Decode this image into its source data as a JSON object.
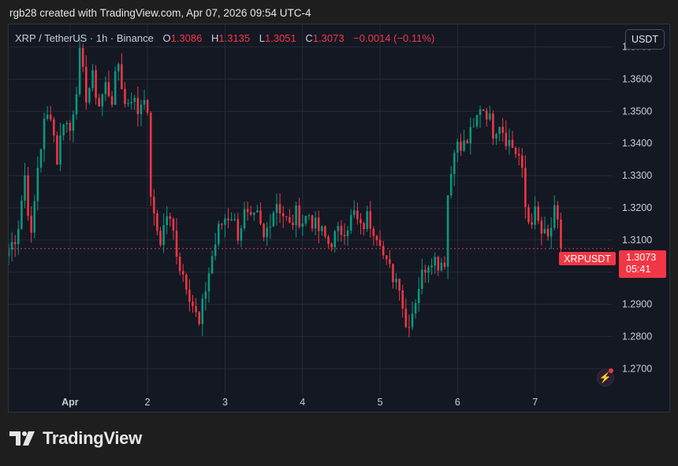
{
  "header": {
    "attribution": "rgb28 created with TradingView.com, Apr 07, 2026 09:54 UTC-4"
  },
  "legend": {
    "symbol": "XRP / TetherUS · 1h · Binance",
    "o_label": "O",
    "o_value": "1.3086",
    "h_label": "H",
    "h_value": "1.3135",
    "l_label": "L",
    "l_value": "1.3051",
    "c_label": "C",
    "c_value": "1.3073",
    "change": "−0.0014 (−0.11%)"
  },
  "currency_button": "USDT",
  "price_tag": {
    "symbol": "XRPUSDT",
    "price": "1.3073",
    "countdown": "05:41"
  },
  "brand": {
    "name": "TradingView"
  },
  "colors": {
    "up": "#089981",
    "down": "#f23645",
    "background": "#141823",
    "grid": "#262b38"
  },
  "chart_data": {
    "type": "candlestick",
    "interval": "1h",
    "y_ticks": [
      "1.3700",
      "1.3600",
      "1.3500",
      "1.3400",
      "1.3300",
      "1.3200",
      "1.3100",
      "1.3000",
      "1.2900",
      "1.2800",
      "1.2700"
    ],
    "ylim": [
      1.262,
      1.377
    ],
    "x_ticks": [
      "Apr",
      "2",
      "3",
      "4",
      "5",
      "6",
      "7"
    ],
    "x_tick_hours": [
      0,
      24,
      48,
      72,
      96,
      120,
      144
    ],
    "xlim": [
      -19,
      168
    ],
    "last_price": 1.3073,
    "grid": true,
    "anchors": [
      [
        -19,
        1.307
      ],
      [
        -17,
        1.311
      ],
      [
        -16,
        1.315
      ],
      [
        -14,
        1.33
      ],
      [
        -12,
        1.31
      ],
      [
        -10,
        1.333
      ],
      [
        -8,
        1.346
      ],
      [
        -6,
        1.35
      ],
      [
        -4,
        1.335
      ],
      [
        -2,
        1.348
      ],
      [
        0,
        1.344
      ],
      [
        2,
        1.358
      ],
      [
        3,
        1.367
      ],
      [
        5,
        1.355
      ],
      [
        7,
        1.36
      ],
      [
        9,
        1.352
      ],
      [
        11,
        1.358
      ],
      [
        13,
        1.354
      ],
      [
        15,
        1.365
      ],
      [
        17,
        1.352
      ],
      [
        19,
        1.355
      ],
      [
        21,
        1.35
      ],
      [
        23,
        1.356
      ],
      [
        24,
        1.347
      ],
      [
        25,
        1.325
      ],
      [
        26,
        1.316
      ],
      [
        28,
        1.31
      ],
      [
        30,
        1.318
      ],
      [
        32,
        1.312
      ],
      [
        34,
        1.302
      ],
      [
        36,
        1.297
      ],
      [
        38,
        1.29
      ],
      [
        40,
        1.283
      ],
      [
        42,
        1.295
      ],
      [
        44,
        1.305
      ],
      [
        46,
        1.313
      ],
      [
        48,
        1.317
      ],
      [
        50,
        1.318
      ],
      [
        52,
        1.312
      ],
      [
        54,
        1.318
      ],
      [
        56,
        1.315
      ],
      [
        58,
        1.317
      ],
      [
        60,
        1.31
      ],
      [
        62,
        1.317
      ],
      [
        64,
        1.322
      ],
      [
        66,
        1.318
      ],
      [
        68,
        1.314
      ],
      [
        70,
        1.318
      ],
      [
        72,
        1.316
      ],
      [
        74,
        1.318
      ],
      [
        76,
        1.314
      ],
      [
        78,
        1.312
      ],
      [
        80,
        1.309
      ],
      [
        82,
        1.311
      ],
      [
        84,
        1.313
      ],
      [
        86,
        1.315
      ],
      [
        88,
        1.318
      ],
      [
        90,
        1.313
      ],
      [
        92,
        1.317
      ],
      [
        94,
        1.314
      ],
      [
        96,
        1.311
      ],
      [
        97,
        1.305
      ],
      [
        98,
        1.302
      ],
      [
        100,
        1.299
      ],
      [
        102,
        1.297
      ],
      [
        103,
        1.29
      ],
      [
        104,
        1.283
      ],
      [
        106,
        1.288
      ],
      [
        108,
        1.296
      ],
      [
        110,
        1.302
      ],
      [
        112,
        1.305
      ],
      [
        114,
        1.303
      ],
      [
        116,
        1.304
      ],
      [
        117,
        1.324
      ],
      [
        118,
        1.331
      ],
      [
        119,
        1.34
      ],
      [
        121,
        1.338
      ],
      [
        123,
        1.341
      ],
      [
        125,
        1.344
      ],
      [
        127,
        1.352
      ],
      [
        129,
        1.35
      ],
      [
        131,
        1.344
      ],
      [
        133,
        1.347
      ],
      [
        135,
        1.342
      ],
      [
        137,
        1.339
      ],
      [
        139,
        1.336
      ],
      [
        140,
        1.33
      ],
      [
        141,
        1.32
      ],
      [
        142,
        1.316
      ],
      [
        144,
        1.318
      ],
      [
        146,
        1.312
      ],
      [
        148,
        1.31
      ],
      [
        150,
        1.318
      ],
      [
        151,
        1.314
      ],
      [
        152,
        1.307
      ]
    ]
  }
}
